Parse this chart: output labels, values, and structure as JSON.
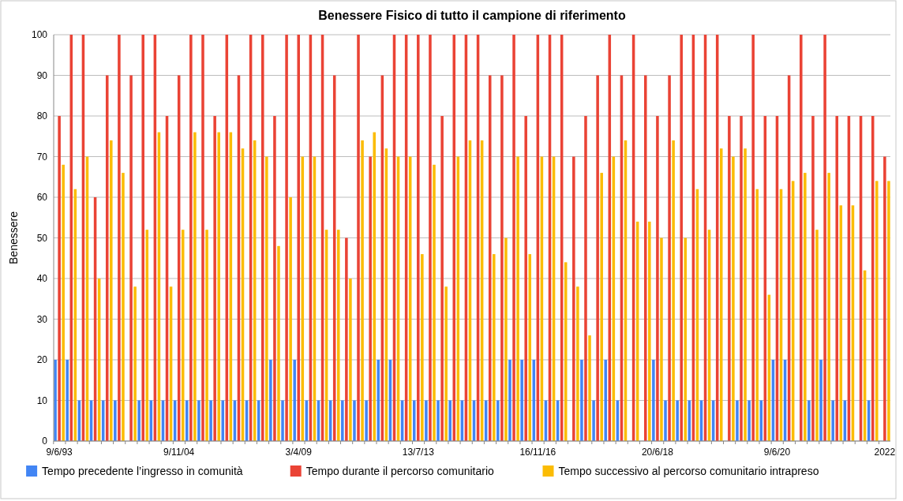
{
  "chart_data": {
    "type": "bar",
    "title": "Benessere Fisico di tutto il campione di riferimento",
    "ylabel": "Benessere",
    "categories": [
      "9/6/93",
      null,
      null,
      null,
      null,
      null,
      null,
      null,
      null,
      null,
      "9/11/04",
      null,
      null,
      null,
      null,
      null,
      null,
      null,
      null,
      null,
      "3/4/09",
      null,
      null,
      null,
      null,
      null,
      null,
      null,
      null,
      null,
      "13/7/13",
      null,
      null,
      null,
      null,
      null,
      null,
      null,
      null,
      null,
      "16/11/16",
      null,
      null,
      null,
      null,
      null,
      null,
      null,
      null,
      null,
      "20/6/18",
      null,
      null,
      null,
      null,
      null,
      null,
      null,
      null,
      null,
      "9/6/20",
      null,
      null,
      null,
      null,
      null,
      null,
      null,
      null,
      "2022"
    ],
    "series": [
      {
        "name": "Tempo precedente l’ingresso in comunità",
        "color": "#4285f4",
        "values": [
          20,
          20,
          10,
          10,
          10,
          10,
          null,
          10,
          10,
          10,
          10,
          10,
          10,
          10,
          10,
          10,
          10,
          10,
          20,
          10,
          20,
          10,
          10,
          10,
          10,
          10,
          10,
          20,
          20,
          10,
          10,
          10,
          10,
          10,
          10,
          10,
          10,
          10,
          20,
          20,
          20,
          10,
          10,
          null,
          20,
          10,
          20,
          10,
          null,
          null,
          20,
          10,
          10,
          10,
          10,
          10,
          null,
          10,
          10,
          10,
          20,
          20,
          null,
          10,
          20,
          10,
          10,
          null,
          10,
          null
        ]
      },
      {
        "name": "Tempo durante il percorso comunitario",
        "color": "#ea4335",
        "values": [
          80,
          100,
          100,
          60,
          90,
          100,
          90,
          100,
          100,
          80,
          90,
          100,
          100,
          80,
          100,
          90,
          100,
          100,
          80,
          100,
          100,
          100,
          100,
          90,
          50,
          100,
          70,
          90,
          100,
          100,
          100,
          100,
          80,
          100,
          100,
          100,
          90,
          90,
          100,
          80,
          100,
          100,
          100,
          70,
          80,
          90,
          100,
          90,
          100,
          90,
          80,
          90,
          100,
          100,
          100,
          100,
          80,
          80,
          100,
          80,
          80,
          90,
          100,
          80,
          100,
          80,
          80,
          80,
          80,
          70
        ]
      },
      {
        "name": "Tempo successivo al percorso comunitario intrapreso",
        "color": "#fbbc04",
        "values": [
          68,
          62,
          70,
          40,
          74,
          66,
          38,
          52,
          76,
          38,
          52,
          76,
          52,
          76,
          76,
          72,
          74,
          70,
          48,
          60,
          70,
          70,
          52,
          52,
          40,
          74,
          76,
          72,
          70,
          70,
          46,
          68,
          38,
          70,
          74,
          74,
          46,
          50,
          70,
          46,
          70,
          70,
          44,
          38,
          26,
          66,
          70,
          74,
          54,
          54,
          50,
          74,
          50,
          62,
          52,
          72,
          70,
          72,
          62,
          36,
          62,
          64,
          66,
          52,
          66,
          58,
          58,
          42,
          64,
          64
        ]
      }
    ],
    "ylim": [
      0,
      100
    ],
    "yticks": [
      0,
      10,
      20,
      30,
      40,
      50,
      60,
      70,
      80,
      90,
      100
    ],
    "grid": "y",
    "legend": "bottom"
  }
}
